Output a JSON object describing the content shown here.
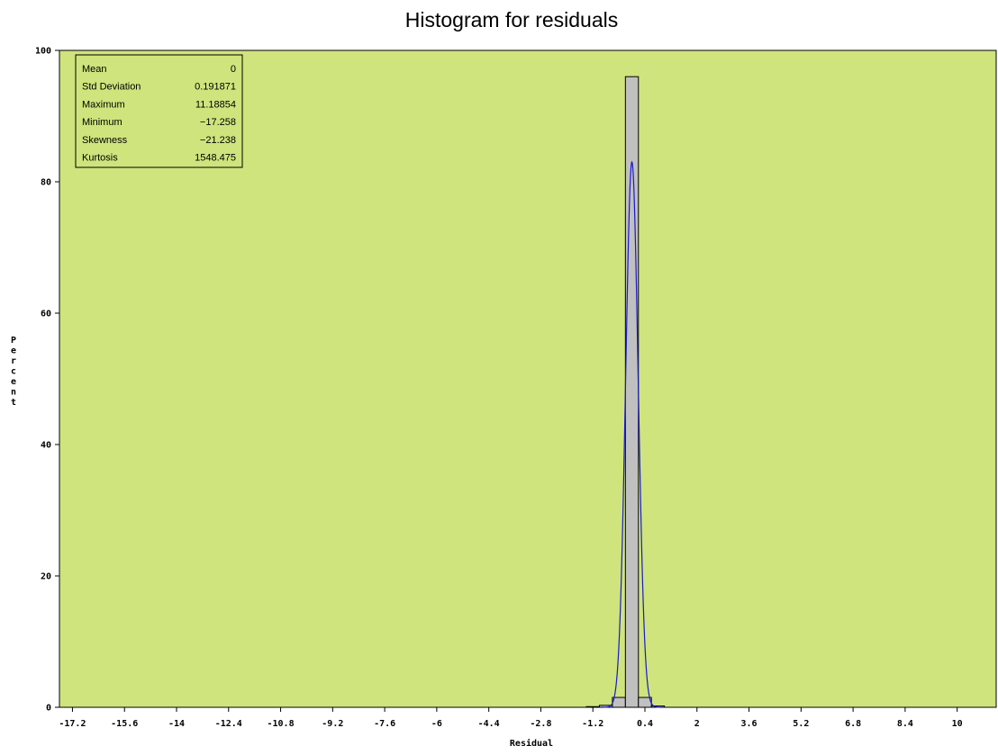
{
  "chart_data": {
    "type": "bar",
    "title": "Histogram for residuals",
    "xlabel": "Residual",
    "ylabel": "Percent",
    "ylim": [
      0,
      100
    ],
    "xlim": [
      -17.6,
      11.2
    ],
    "x_ticks": [
      "-17.2",
      "-15.6",
      "-14",
      "-12.4",
      "-10.8",
      "-9.2",
      "-7.6",
      "-6",
      "-4.4",
      "-2.8",
      "-1.2",
      "0.4",
      "2",
      "3.6",
      "5.2",
      "6.8",
      "8.4",
      "10"
    ],
    "y_ticks": [
      "0",
      "20",
      "40",
      "60",
      "80",
      "100"
    ],
    "bin_width": 0.4,
    "bins": [
      {
        "x": -1.2,
        "value": 0.1
      },
      {
        "x": -0.8,
        "value": 0.3
      },
      {
        "x": -0.4,
        "value": 1.5
      },
      {
        "x": 0.0,
        "value": 96.0
      },
      {
        "x": 0.4,
        "value": 1.5
      },
      {
        "x": 0.8,
        "value": 0.2
      }
    ],
    "density_curve": {
      "mean": 0,
      "std": 0.191871,
      "peak": 83
    },
    "grid": false,
    "colors": {
      "plot_background": "#cfe47c",
      "bar_fill": "#c0c0c0",
      "bar_edge": "#000000",
      "curve": "#1a1acc"
    }
  },
  "stats_box": {
    "rows": [
      {
        "label": "Mean",
        "value": "0"
      },
      {
        "label": "Std Deviation",
        "value": "0.191871"
      },
      {
        "label": "Maximum",
        "value": "11.18854"
      },
      {
        "label": "Minimum",
        "value": "−17.258"
      },
      {
        "label": "Skewness",
        "value": "−21.238"
      },
      {
        "label": "Kurtosis",
        "value": "1548.475"
      }
    ]
  }
}
